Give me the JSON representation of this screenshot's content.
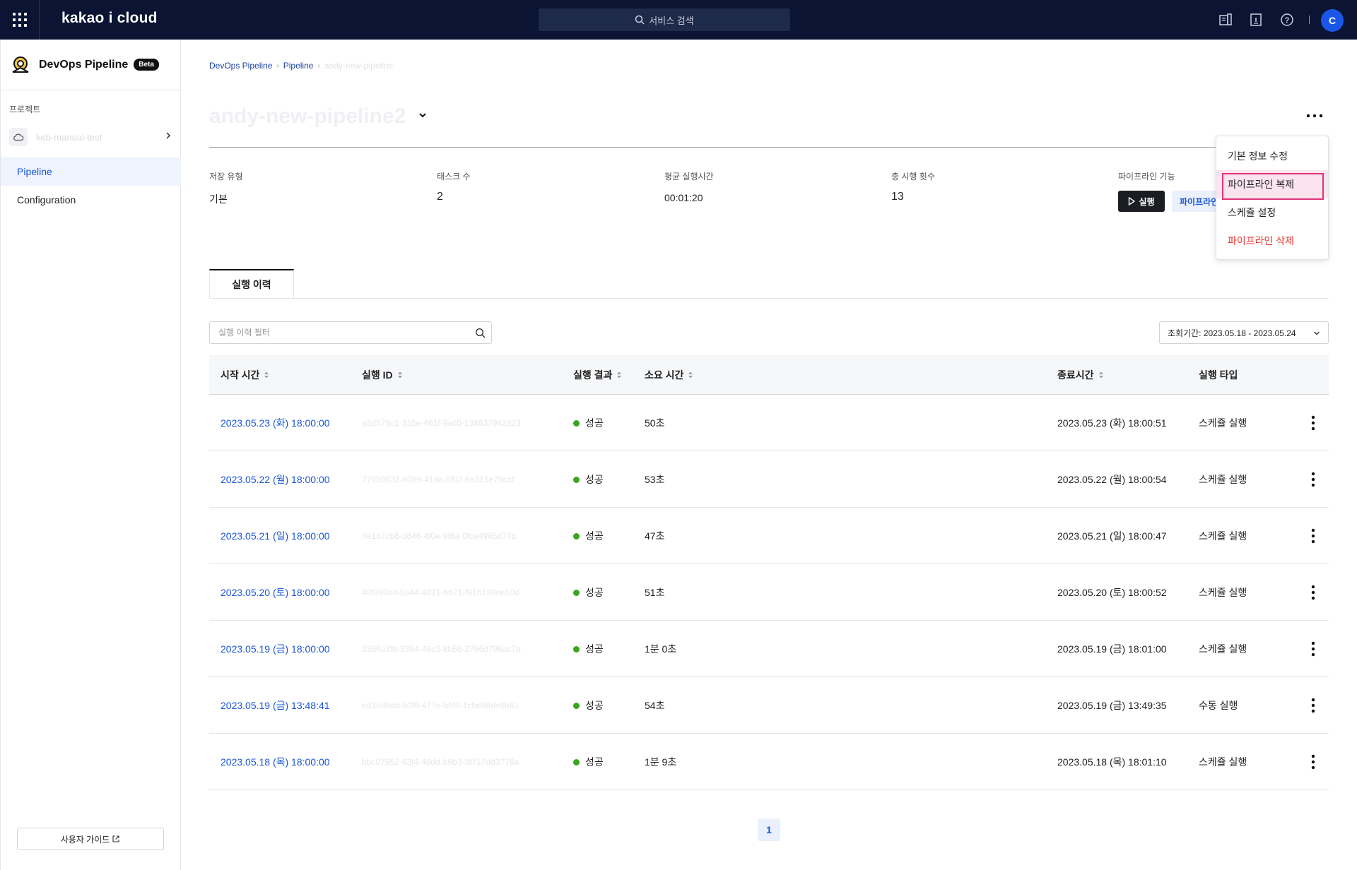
{
  "topbar": {
    "logo": "kakao i cloud",
    "search_placeholder": "서비스 검색",
    "avatar_initial": "C"
  },
  "sidebar": {
    "service_title": "DevOps Pipeline",
    "badge": "Beta",
    "project_label": "프로젝트",
    "project_name": "keb-manual-test",
    "items": [
      {
        "label": "Pipeline"
      },
      {
        "label": "Configuration"
      }
    ],
    "guide_label": "사용자 가이드"
  },
  "breadcrumb": {
    "root": "DevOps Pipeline",
    "section": "Pipeline",
    "current": "andy-new-pipeline"
  },
  "page": {
    "title": "andy-new-pipeline2"
  },
  "stats": {
    "storage_type_label": "저장 유형",
    "storage_type_value": "기본",
    "task_count_label": "태스크 수",
    "task_count_value": "2",
    "avg_time_label": "평균 실행시간",
    "avg_time_value": "00:01:20",
    "total_runs_label": "총 시행 횟수",
    "total_runs_value": "13",
    "features_label": "파이프라인 기능",
    "run_label": "실행",
    "pipeline_label": "파이프라인"
  },
  "menu": {
    "items": [
      "기본 정보 수정",
      "파이프라인 복제",
      "스케쥴 설정",
      "파이프라인 삭제"
    ]
  },
  "tabs": {
    "history": "실행 이력"
  },
  "filter": {
    "placeholder": "실행 이력 필터",
    "value": "",
    "period": "조회기간: 2023.05.18 - 2023.05.24"
  },
  "table": {
    "headers": {
      "start": "시작 시간",
      "id": "실행 ID",
      "result": "실행 결과",
      "duration": "소요 시간",
      "end": "종료시간",
      "type": "실행 타입"
    },
    "rows": [
      {
        "start": "2023.05.23 (화) 18:00:00",
        "id": "a3d579c1-315e-461f-9ac0-134637942823",
        "result": "성공",
        "duration": "50초",
        "end": "2023.05.23 (화) 18:00:51",
        "type": "스케쥴 실행"
      },
      {
        "start": "2023.05.22 (월) 18:00:00",
        "id": "77050832-60b9-41da-8f02-6e315e79caf",
        "result": "성공",
        "duration": "53초",
        "end": "2023.05.22 (월) 18:00:54",
        "type": "스케쥴 실행"
      },
      {
        "start": "2023.05.21 (일) 18:00:00",
        "id": "4e1d7cb8-d846-4f0e-9f6a-0fce4965d74b",
        "result": "성공",
        "duration": "47초",
        "end": "2023.05.21 (일) 18:00:47",
        "type": "스케쥴 실행"
      },
      {
        "start": "2023.05.20 (토) 18:00:00",
        "id": "40f896bd-5a44-4821-bb71-f81b139ee10d",
        "result": "성공",
        "duration": "51초",
        "end": "2023.05.20 (토) 18:00:52",
        "type": "스케쥴 실행"
      },
      {
        "start": "2023.05.19 (금) 18:00:00",
        "id": "3356a3fb-9364-46c3-8b56-2766d796ac7a",
        "result": "성공",
        "duration": "1분 0초",
        "end": "2023.05.19 (금) 18:01:00",
        "type": "스케쥴 실행"
      },
      {
        "start": "2023.05.19 (금) 13:48:41",
        "id": "ed36d6da-60f8-477e-b5f0-1cbe98de6b61",
        "result": "성공",
        "duration": "54초",
        "end": "2023.05.19 (금) 13:49:35",
        "type": "수동 실행"
      },
      {
        "start": "2023.05.18 (목) 18:00:00",
        "id": "bbc07952-63f4-48dd-b6b3-3f717dd3776a",
        "result": "성공",
        "duration": "1분 9초",
        "end": "2023.05.18 (목) 18:01:10",
        "type": "스케쥴 실행"
      }
    ]
  },
  "pagination": {
    "current": "1"
  },
  "colors": {
    "topbar": "#0b1533",
    "accent": "#1a56d6",
    "success": "#3ba51f",
    "danger": "#e5362f",
    "highlight_border": "#e0347c"
  }
}
